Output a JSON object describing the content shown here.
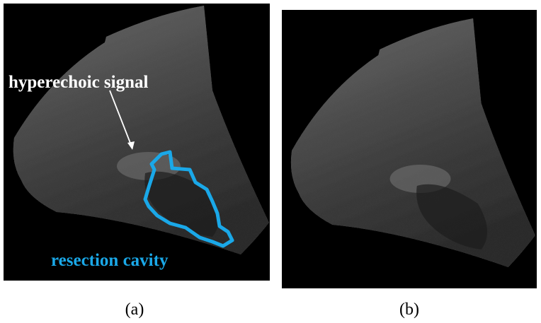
{
  "panels": [
    {
      "label": "(a)",
      "annotations": {
        "signal": "hyperechoic signal",
        "cavity": "resection cavity"
      }
    },
    {
      "label": "(b)"
    }
  ]
}
